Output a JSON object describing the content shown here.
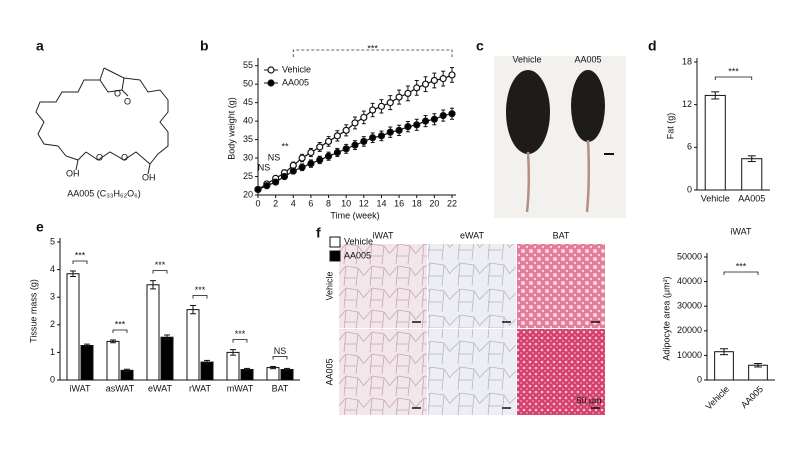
{
  "panels": [
    "a",
    "b",
    "c",
    "d",
    "e",
    "f"
  ],
  "structure": {
    "label": "AA005 (C₃₃H₆₂O₆)",
    "atoms": [
      "O",
      "O",
      "OH",
      "O",
      "O",
      "OH"
    ]
  },
  "photo": {
    "labels": [
      "Vehicle",
      "AA005"
    ]
  },
  "histology": {
    "columns": [
      "iWAT",
      "eWAT",
      "BAT"
    ],
    "rows": [
      "Vehicle",
      "AA005"
    ],
    "scale_bar": "50 μm"
  },
  "chart_data": [
    {
      "type": "line",
      "x_label": "Time (week)",
      "y_label": "Body weight (g)",
      "x": [
        0,
        1,
        2,
        3,
        4,
        5,
        6,
        7,
        8,
        9,
        10,
        11,
        12,
        13,
        14,
        15,
        16,
        17,
        18,
        19,
        20,
        21,
        22
      ],
      "series": [
        {
          "name": "Vehicle",
          "color": "#ffffff",
          "values": [
            21.5,
            23,
            24.5,
            26,
            28,
            30,
            31.5,
            33,
            34.5,
            36,
            37.5,
            39.5,
            41,
            43,
            44,
            45,
            46.5,
            47.5,
            49,
            50,
            51,
            51.5,
            52.5
          ],
          "errors": [
            0.5,
            0.6,
            0.7,
            0.8,
            0.9,
            1,
            1.1,
            1.2,
            1.3,
            1.4,
            1.5,
            1.6,
            1.7,
            1.8,
            1.8,
            1.9,
            1.9,
            2,
            2,
            2,
            2,
            2,
            2
          ]
        },
        {
          "name": "AA005",
          "color": "#000000",
          "values": [
            21.5,
            22.5,
            23.5,
            25,
            26.5,
            27.5,
            28.5,
            29.5,
            30.5,
            31.5,
            32.5,
            33.5,
            34.5,
            35.5,
            36,
            37,
            37.5,
            38.5,
            39,
            40,
            40.5,
            41.5,
            42
          ],
          "errors": [
            0.5,
            0.5,
            0.6,
            0.7,
            0.8,
            0.9,
            1,
            1,
            1.1,
            1.1,
            1.2,
            1.2,
            1.3,
            1.3,
            1.3,
            1.4,
            1.4,
            1.4,
            1.5,
            1.5,
            1.5,
            1.5,
            1.5
          ]
        }
      ],
      "xlim": [
        0,
        22
      ],
      "ylim": [
        20,
        56
      ],
      "xticks": [
        0,
        2,
        4,
        6,
        8,
        10,
        12,
        14,
        16,
        18,
        20,
        22
      ],
      "yticks": [
        20,
        25,
        30,
        35,
        40,
        45,
        50,
        55
      ],
      "annotations": [
        "***",
        "**",
        "NS",
        "NS"
      ],
      "legend": "upper left"
    },
    {
      "type": "bar",
      "y_label": "Fat (g)",
      "categories": [
        "Vehicle",
        "AA005"
      ],
      "values": [
        13.3,
        4.4
      ],
      "errors": [
        0.5,
        0.4
      ],
      "color": "#ffffff",
      "ylim": [
        0,
        18
      ],
      "yticks": [
        0,
        6,
        12,
        18
      ],
      "annotations": [
        "***"
      ]
    },
    {
      "type": "grouped_bar",
      "y_label": "Tissue mass (g)",
      "categories": [
        "iWAT",
        "asWAT",
        "eWAT",
        "rWAT",
        "mWAT",
        "BAT"
      ],
      "series": [
        {
          "name": "Vehicle",
          "color": "#ffffff",
          "values": [
            3.85,
            1.4,
            3.45,
            2.55,
            1.0,
            0.45
          ],
          "errors": [
            0.1,
            0.05,
            0.15,
            0.15,
            0.1,
            0.04
          ]
        },
        {
          "name": "AA005",
          "color": "#000000",
          "values": [
            1.25,
            0.35,
            1.55,
            0.65,
            0.38,
            0.38
          ],
          "errors": [
            0.05,
            0.04,
            0.08,
            0.06,
            0.04,
            0.04
          ]
        }
      ],
      "ylim": [
        0,
        5
      ],
      "yticks": [
        0,
        1,
        2,
        3,
        4,
        5
      ],
      "annotations": [
        "***",
        "***",
        "***",
        "***",
        "***",
        "NS"
      ],
      "legend": "upper right"
    },
    {
      "type": "bar",
      "title": "iWAT",
      "y_label": "Adipocyte area (μm²)",
      "categories": [
        "Vehicle",
        "AA005"
      ],
      "values": [
        11500,
        6000
      ],
      "errors": [
        1200,
        700
      ],
      "color": "#ffffff",
      "ylim": [
        0,
        50000
      ],
      "yticks": [
        0,
        10000,
        20000,
        30000,
        40000,
        50000
      ],
      "annotations": [
        "***"
      ]
    }
  ]
}
